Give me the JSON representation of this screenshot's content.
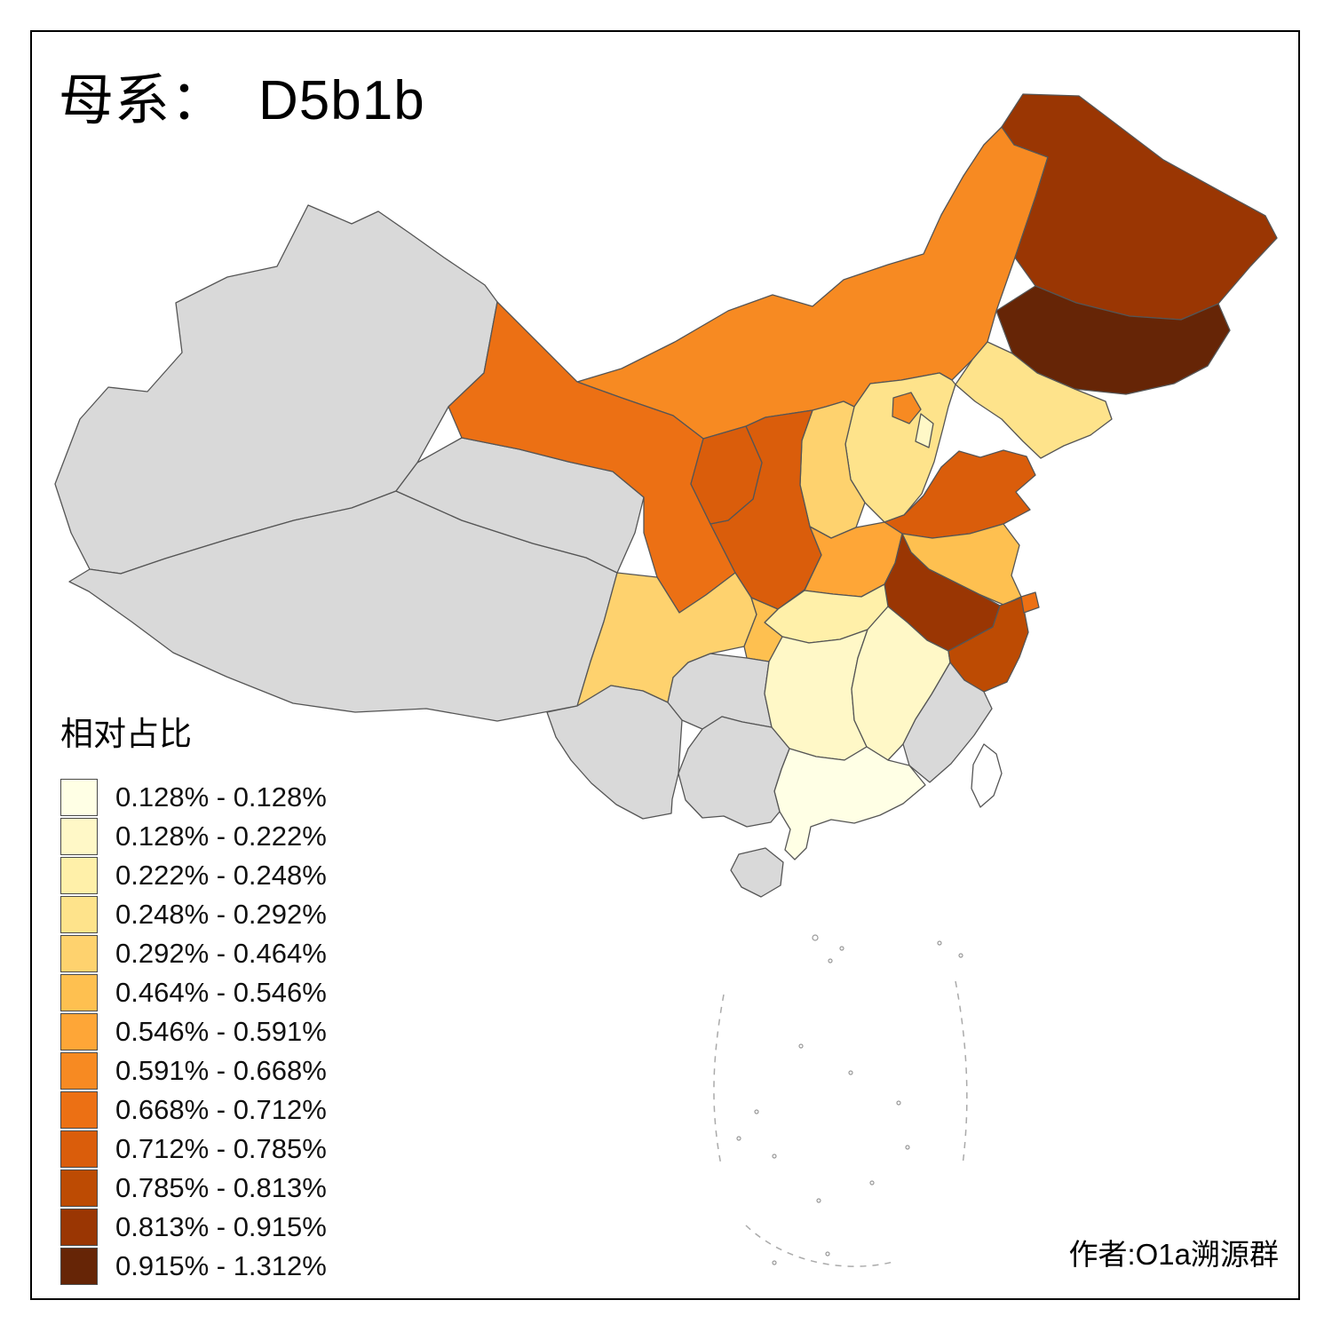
{
  "title": {
    "prefix": "母系：",
    "haplogroup": "D5b1b"
  },
  "legend": {
    "title": "相对占比",
    "bins": [
      {
        "label": "0.128% - 0.128%",
        "color": "#FFFFE5"
      },
      {
        "label": "0.128% - 0.222%",
        "color": "#FFF8C7"
      },
      {
        "label": "0.222% - 0.248%",
        "color": "#FFF0A9"
      },
      {
        "label": "0.248% - 0.292%",
        "color": "#FEE38B"
      },
      {
        "label": "0.292% - 0.464%",
        "color": "#FED26E"
      },
      {
        "label": "0.464% - 0.546%",
        "color": "#FEC050"
      },
      {
        "label": "0.546% - 0.591%",
        "color": "#FEA637"
      },
      {
        "label": "0.591% - 0.668%",
        "color": "#F78A22"
      },
      {
        "label": "0.668% - 0.712%",
        "color": "#EC7014"
      },
      {
        "label": "0.712% - 0.785%",
        "color": "#DA5D0B"
      },
      {
        "label": "0.785% - 0.813%",
        "color": "#BD4B03"
      },
      {
        "label": "0.813% - 0.915%",
        "color": "#9A3603"
      },
      {
        "label": "0.915% - 1.312%",
        "color": "#662506"
      }
    ]
  },
  "credit": "作者:O1a溯源群",
  "map_data": {
    "type": "choropleth",
    "metric": "相对占比",
    "no_data_color": "#D9D9D9",
    "background_color": "#FFFFFF",
    "regions": [
      {
        "region": "xinjiang",
        "bin": null
      },
      {
        "region": "tibet",
        "bin": null
      },
      {
        "region": "qinghai",
        "bin": null
      },
      {
        "region": "inner_mongolia",
        "bin": 7
      },
      {
        "region": "gansu",
        "bin": 8
      },
      {
        "region": "heilongjiang",
        "bin": 11
      },
      {
        "region": "jilin",
        "bin": 12
      },
      {
        "region": "liaoning",
        "bin": 3
      },
      {
        "region": "hebei",
        "bin": 3
      },
      {
        "region": "shanxi",
        "bin": 4
      },
      {
        "region": "shaanxi",
        "bin": 9
      },
      {
        "region": "ningxia",
        "bin": 9
      },
      {
        "region": "shandong",
        "bin": 9
      },
      {
        "region": "henan",
        "bin": 6
      },
      {
        "region": "jiangsu",
        "bin": 5
      },
      {
        "region": "anhui",
        "bin": 11
      },
      {
        "region": "hubei",
        "bin": 2
      },
      {
        "region": "sichuan",
        "bin": 4
      },
      {
        "region": "chongqing",
        "bin": 5
      },
      {
        "region": "guizhou",
        "bin": null
      },
      {
        "region": "yunnan",
        "bin": null
      },
      {
        "region": "hunan",
        "bin": 1
      },
      {
        "region": "jiangxi",
        "bin": 1
      },
      {
        "region": "zhejiang",
        "bin": 10
      },
      {
        "region": "fujian",
        "bin": null
      },
      {
        "region": "guangdong",
        "bin": 0
      },
      {
        "region": "guangxi",
        "bin": null
      },
      {
        "region": "hainan",
        "bin": null
      },
      {
        "region": "taiwan",
        "bin": null,
        "fill": "#FFFFFF"
      },
      {
        "region": "shanghai",
        "bin": 8
      },
      {
        "region": "beijing",
        "bin": 7
      },
      {
        "region": "tianjin",
        "bin": 1
      }
    ]
  }
}
